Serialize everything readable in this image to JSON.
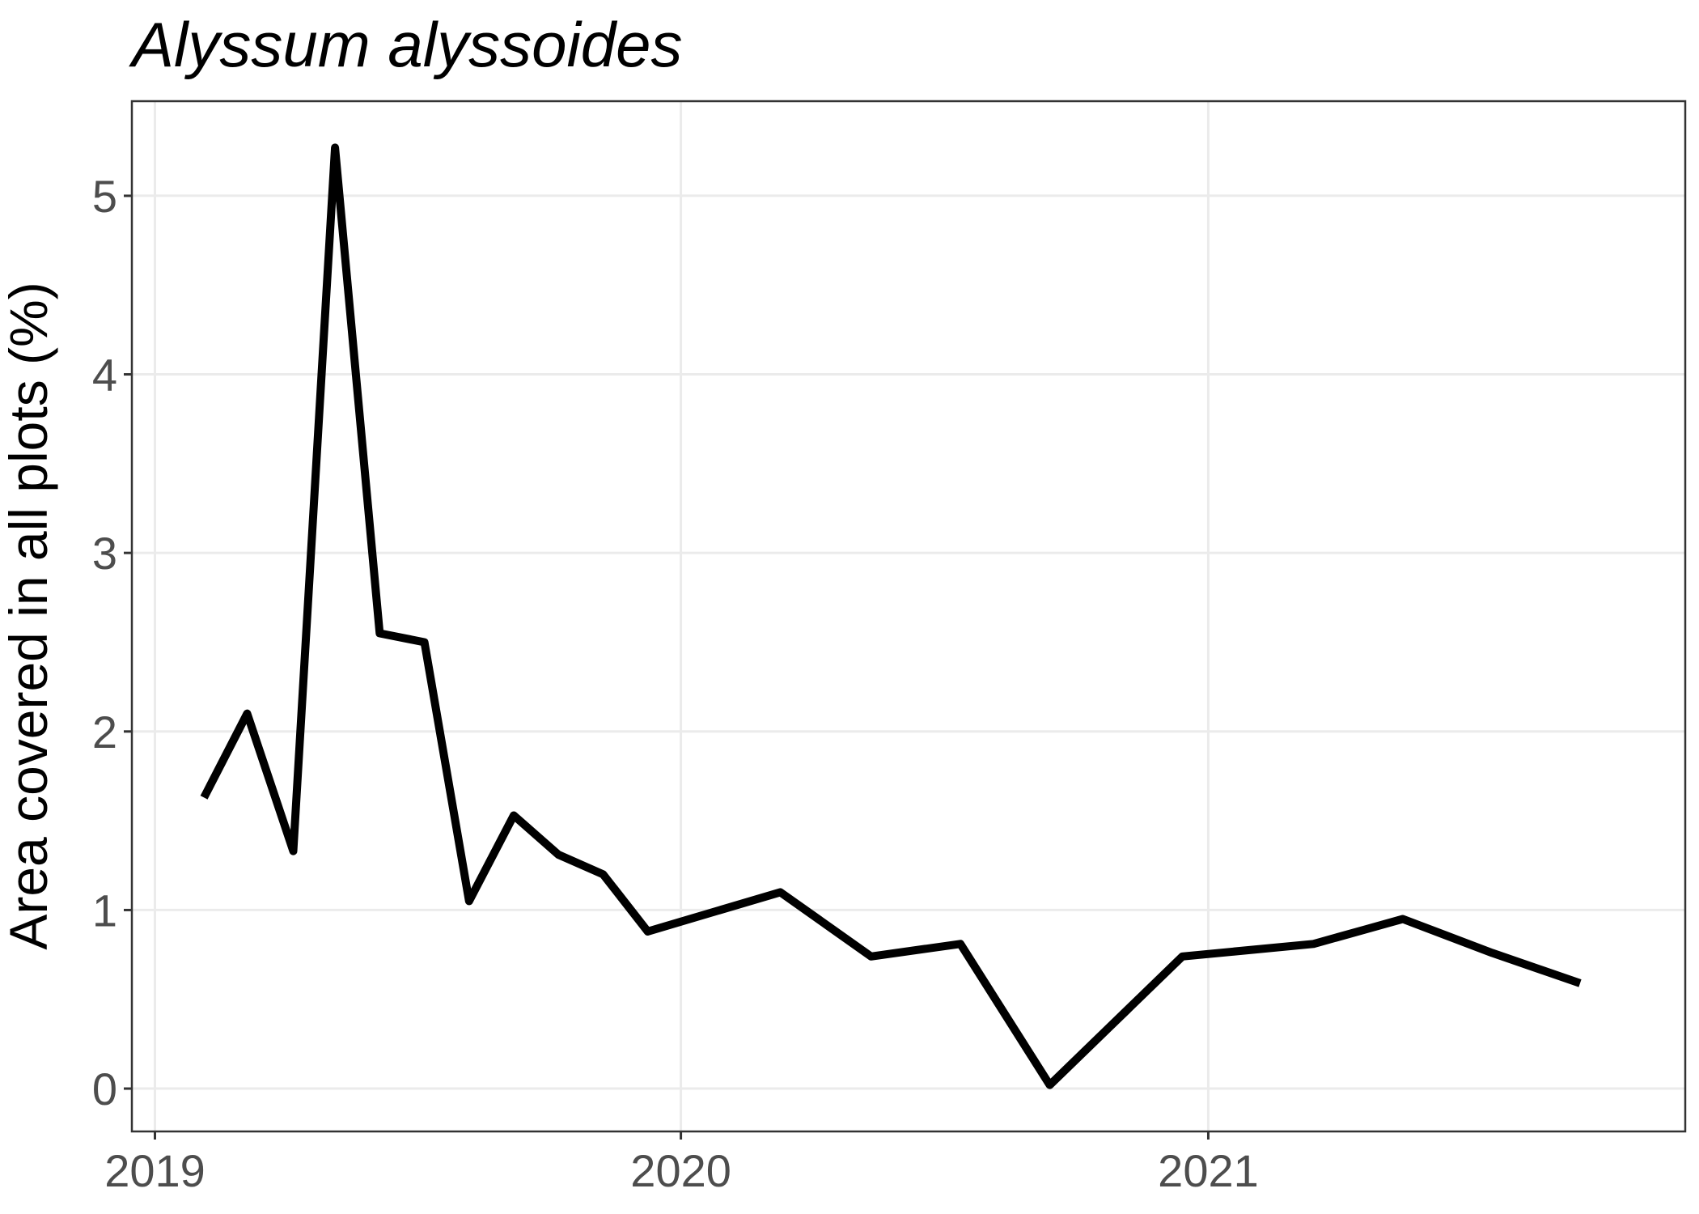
{
  "chart_data": {
    "type": "line",
    "title": "Alyssum alyssoides",
    "xlabel": "",
    "ylabel": "Area covered in all plots (%)",
    "x_ticks": [
      "2019",
      "2020",
      "2021"
    ],
    "y_ticks": [
      0,
      1,
      2,
      3,
      4,
      5
    ],
    "xlim": [
      "2018-12-16",
      "2021-11-28"
    ],
    "ylim": [
      -0.24,
      5.53
    ],
    "grid": true,
    "legend": "none",
    "series": [
      {
        "color": "#000000",
        "points": [
          {
            "x": "2019-02-04",
            "y": 1.63
          },
          {
            "x": "2019-03-06",
            "y": 2.1
          },
          {
            "x": "2019-04-07",
            "y": 1.33
          },
          {
            "x": "2019-05-06",
            "y": 5.27
          },
          {
            "x": "2019-06-06",
            "y": 2.55
          },
          {
            "x": "2019-07-07",
            "y": 2.5
          },
          {
            "x": "2019-08-07",
            "y": 1.05
          },
          {
            "x": "2019-09-07",
            "y": 1.53
          },
          {
            "x": "2019-10-08",
            "y": 1.31
          },
          {
            "x": "2019-11-08",
            "y": 1.2
          },
          {
            "x": "2019-12-09",
            "y": 0.88
          },
          {
            "x": "2020-03-10",
            "y": 1.1
          },
          {
            "x": "2020-05-12",
            "y": 0.74
          },
          {
            "x": "2020-07-13",
            "y": 0.81
          },
          {
            "x": "2020-09-13",
            "y": 0.02
          },
          {
            "x": "2020-12-14",
            "y": 0.74
          },
          {
            "x": "2021-03-15",
            "y": 0.81
          },
          {
            "x": "2021-05-16",
            "y": 0.95
          },
          {
            "x": "2021-07-17",
            "y": 0.76
          },
          {
            "x": "2021-09-16",
            "y": 0.59
          }
        ]
      }
    ]
  }
}
